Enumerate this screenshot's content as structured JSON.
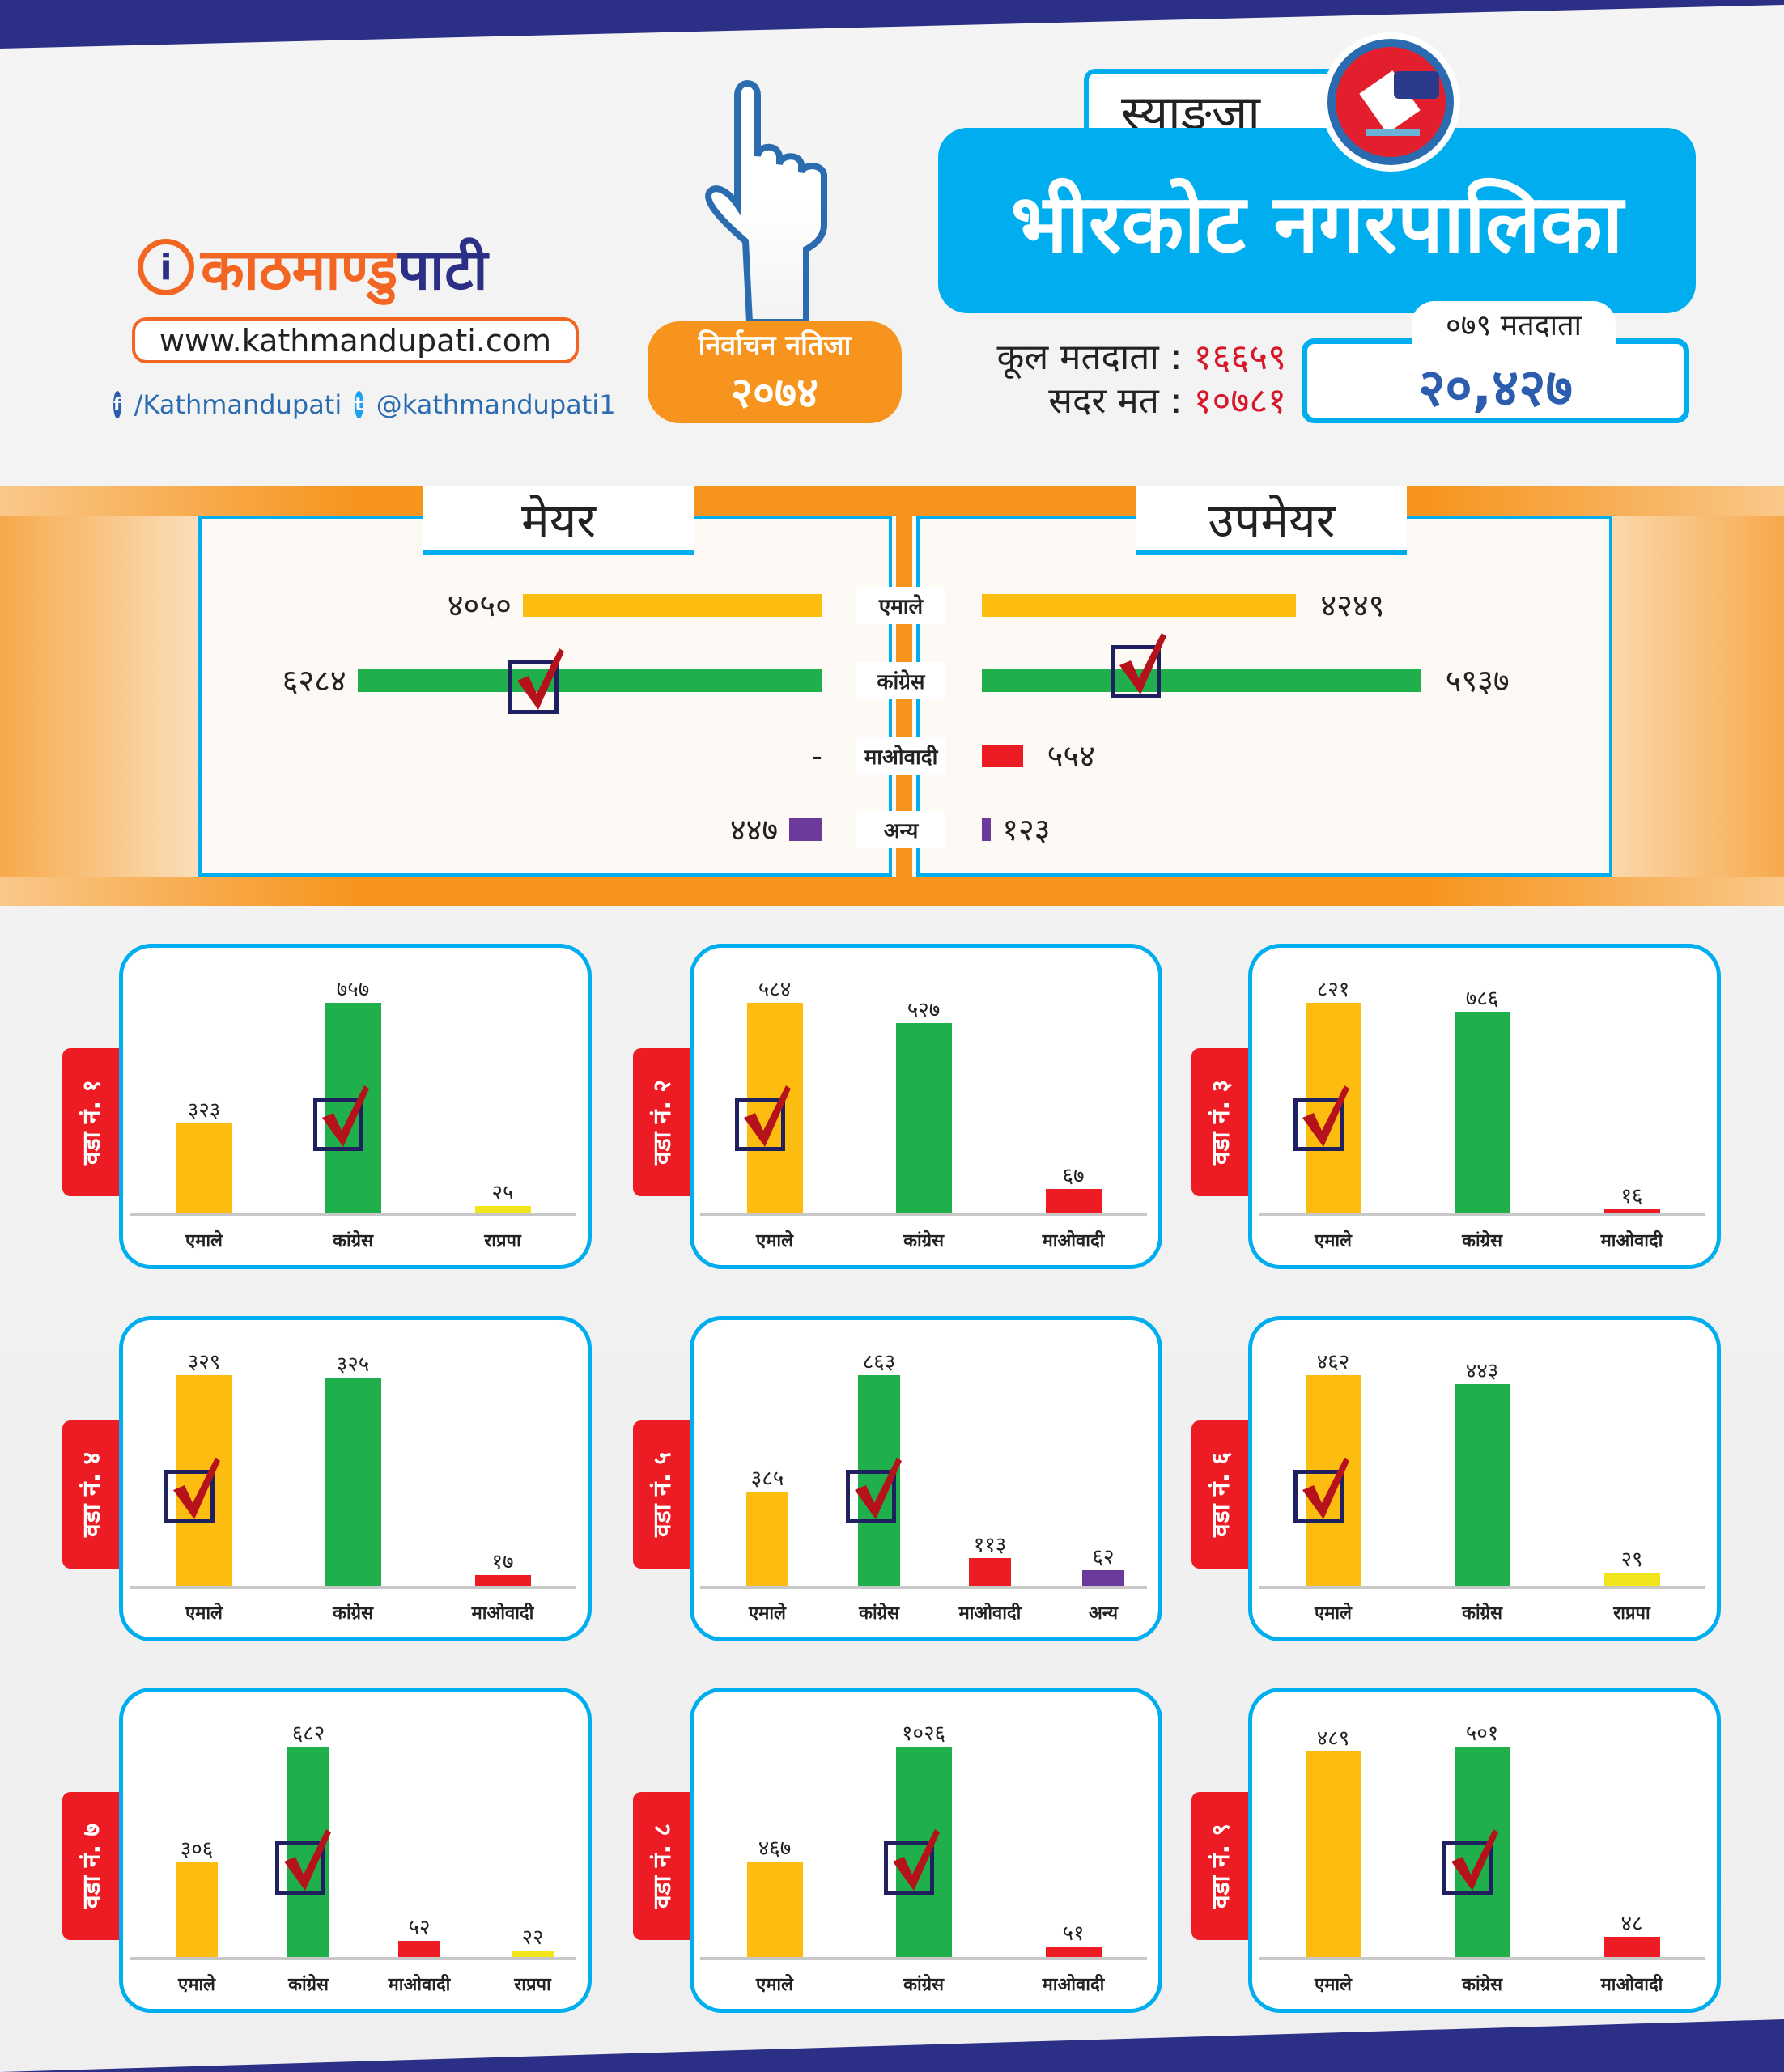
{
  "header": {
    "brand_part1": "काठमाण्डु",
    "brand_part2": "पाटी",
    "url": "www.kathmandupati.com",
    "facebook": "/Kathmandupati",
    "twitter": "@kathmandupati1",
    "election_label": "निर्वाचन नतिजा",
    "election_year": "२०७४",
    "district": "स्याङ्जा",
    "municipality": "भीरकोट नगरपालिका",
    "total_voters_label": "कूल मतदाता :",
    "total_voters": "१६६५९",
    "valid_votes_label": "सदर मत :",
    "valid_votes": "१०७८१",
    "voters_079_label": "०७९ मतदाता",
    "voters_079": "२०,४२७"
  },
  "colors": {
    "एमाले": "#fdbd10",
    "कांग्रेस": "#1fb04b",
    "माओवादी": "#ed1c24",
    "राप्रपा": "#f2e51b",
    "अन्य": "#6c3a9c",
    "accent": "#00aeef",
    "orange": "#f7941d",
    "tab": "#ed1c24"
  },
  "mayor_section": {
    "mayor_title": "मेयर",
    "deputy_title": "उपमेयर",
    "rows": [
      {
        "party": "एमाले",
        "mayor": 4050,
        "mayor_label": "४०५०",
        "deputy": 4249,
        "deputy_label": "४२४९"
      },
      {
        "party": "कांग्रेस",
        "mayor": 6284,
        "mayor_label": "६२८४",
        "deputy": 5937,
        "deputy_label": "५९३७",
        "mayor_winner": true,
        "deputy_winner": true
      },
      {
        "party": "माओवादी",
        "mayor": 0,
        "mayor_label": "-",
        "deputy": 554,
        "deputy_label": "५५४"
      },
      {
        "party": "अन्य",
        "mayor": 447,
        "mayor_label": "४४७",
        "deputy": 123,
        "deputy_label": "१२३"
      }
    ]
  },
  "chart_data": [
    {
      "type": "bar",
      "title": "वडा नं. १",
      "categories": [
        "एमाले",
        "कांग्रेस",
        "राप्रपा"
      ],
      "values": [
        323,
        757,
        25
      ],
      "labels": [
        "३२३",
        "७५७",
        "२५"
      ],
      "winner": "कांग्रेस"
    },
    {
      "type": "bar",
      "title": "वडा नं. २",
      "categories": [
        "एमाले",
        "कांग्रेस",
        "माओवादी"
      ],
      "values": [
        584,
        527,
        67
      ],
      "labels": [
        "५८४",
        "५२७",
        "६७"
      ],
      "winner": "एमाले"
    },
    {
      "type": "bar",
      "title": "वडा नं. ३",
      "categories": [
        "एमाले",
        "कांग्रेस",
        "माओवादी"
      ],
      "values": [
        821,
        786,
        16
      ],
      "labels": [
        "८२१",
        "७८६",
        "१६"
      ],
      "winner": "एमाले"
    },
    {
      "type": "bar",
      "title": "वडा नं. ४",
      "categories": [
        "एमाले",
        "कांग्रेस",
        "माओवादी"
      ],
      "values": [
        329,
        325,
        17
      ],
      "labels": [
        "३२९",
        "३२५",
        "१७"
      ],
      "winner": "एमाले"
    },
    {
      "type": "bar",
      "title": "वडा नं. ५",
      "categories": [
        "एमाले",
        "कांग्रेस",
        "माओवादी",
        "अन्य"
      ],
      "values": [
        385,
        863,
        113,
        62
      ],
      "labels": [
        "३८५",
        "८६३",
        "११३",
        "६२"
      ],
      "winner": "कांग्रेस"
    },
    {
      "type": "bar",
      "title": "वडा नं. ६",
      "categories": [
        "एमाले",
        "कांग्रेस",
        "राप्रपा"
      ],
      "values": [
        462,
        443,
        29
      ],
      "labels": [
        "४६२",
        "४४३",
        "२९"
      ],
      "winner": "एमाले"
    },
    {
      "type": "bar",
      "title": "वडा नं. ७",
      "categories": [
        "एमाले",
        "कांग्रेस",
        "माओवादी",
        "राप्रपा"
      ],
      "values": [
        306,
        682,
        52,
        22
      ],
      "labels": [
        "३०६",
        "६८२",
        "५२",
        "२२"
      ],
      "winner": "कांग्रेस"
    },
    {
      "type": "bar",
      "title": "वडा नं. ८",
      "categories": [
        "एमाले",
        "कांग्रेस",
        "माओवादी"
      ],
      "values": [
        467,
        1026,
        51
      ],
      "labels": [
        "४६७",
        "१०२६",
        "५१"
      ],
      "winner": "कांग्रेस"
    },
    {
      "type": "bar",
      "title": "वडा नं. ९",
      "categories": [
        "एमाले",
        "कांग्रेस",
        "माओवादी"
      ],
      "values": [
        489,
        501,
        48
      ],
      "labels": [
        "४८९",
        "५०१",
        "४८"
      ],
      "winner": "कांग्रेस"
    }
  ]
}
